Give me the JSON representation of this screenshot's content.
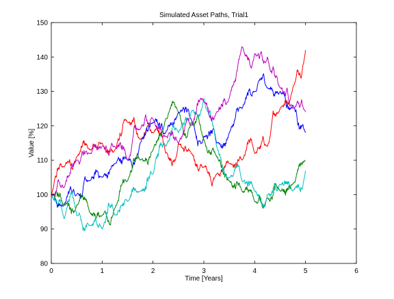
{
  "chart_data": {
    "type": "line",
    "title": "Simulated Asset Paths, Trial1",
    "xlabel": "Time [Years]",
    "ylabel": "Value [%]",
    "xlim": [
      0,
      6
    ],
    "ylim": [
      80,
      150
    ],
    "xticks": [
      0,
      1,
      2,
      3,
      4,
      5,
      6
    ],
    "yticks": [
      80,
      90,
      100,
      110,
      120,
      130,
      140,
      150
    ],
    "grid": false,
    "legend": "none",
    "x": [
      0,
      0.25,
      0.5,
      0.75,
      1.0,
      1.25,
      1.5,
      1.75,
      2.0,
      2.25,
      2.5,
      2.75,
      3.0,
      3.25,
      3.5,
      3.75,
      4.0,
      4.25,
      4.5,
      4.75,
      5.0
    ],
    "series": [
      {
        "color": "#ff0000",
        "values": [
          100,
          108,
          111,
          113,
          115,
          113,
          121,
          116,
          118,
          112,
          115,
          112,
          108,
          106,
          109,
          110,
          112,
          114,
          125,
          131,
          142
        ]
      },
      {
        "color": "#0000ff",
        "values": [
          100,
          97,
          100,
          104,
          105,
          109,
          110,
          115,
          121,
          118,
          124,
          122,
          117,
          115,
          118,
          125,
          130,
          131,
          130,
          126,
          118
        ]
      },
      {
        "color": "#008000",
        "values": [
          100,
          97,
          97,
          95,
          94,
          96,
          104,
          110,
          113,
          122,
          124,
          121,
          116,
          111,
          104,
          101,
          98,
          99,
          101,
          103,
          110
        ]
      },
      {
        "color": "#00bfbf",
        "values": [
          100,
          93,
          94,
          91,
          90,
          94,
          98,
          101,
          106,
          114,
          118,
          124,
          128,
          114,
          105,
          104,
          101,
          100,
          103,
          101,
          107
        ]
      },
      {
        "color": "#bf00bf",
        "values": [
          100,
          102,
          110,
          112,
          114,
          114,
          110,
          119,
          122,
          117,
          115,
          120,
          127,
          124,
          128,
          143,
          141,
          140,
          131,
          125,
          124
        ]
      }
    ]
  }
}
